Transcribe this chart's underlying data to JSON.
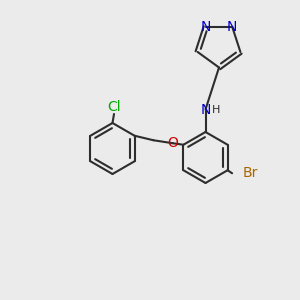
{
  "bg_color": "#ebebeb",
  "bond_color": "#2d2d2d",
  "bond_width": 1.5,
  "font_size": 9,
  "figsize": [
    3.0,
    3.0
  ],
  "dpi": 100,
  "colors": {
    "N": "#0000cc",
    "O": "#cc0000",
    "Cl": "#00aa00",
    "Br": "#aa6600",
    "C": "#2d2d2d",
    "H": "#2d2d2d"
  }
}
